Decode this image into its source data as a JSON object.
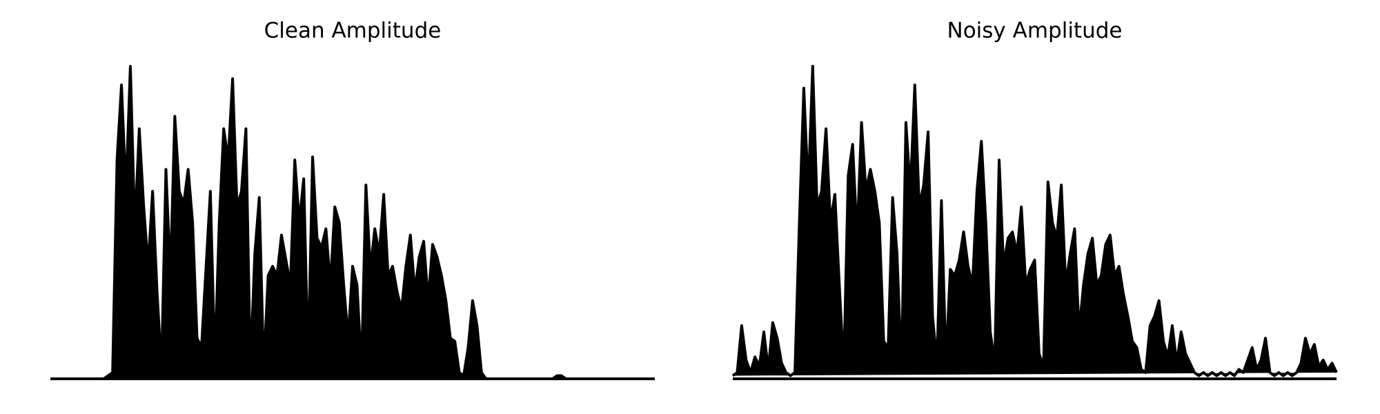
{
  "chart_data": [
    {
      "type": "area",
      "title": "Clean Amplitude",
      "color": "#000000",
      "ylim": [
        0,
        1
      ],
      "values": [
        0,
        0,
        0,
        0,
        0,
        0,
        0,
        0,
        0,
        0,
        0,
        0,
        0,
        0.01,
        0.02,
        0.7,
        0.94,
        0.6,
        1.0,
        0.48,
        0.8,
        0.55,
        0.36,
        0.6,
        0.28,
        0.03,
        0.67,
        0.33,
        0.84,
        0.6,
        0.56,
        0.67,
        0.5,
        0.13,
        0.1,
        0.35,
        0.6,
        0.05,
        0.5,
        0.8,
        0.7,
        0.96,
        0.55,
        0.6,
        0.8,
        0.03,
        0.4,
        0.58,
        0.03,
        0.33,
        0.36,
        0.33,
        0.46,
        0.38,
        0.3,
        0.7,
        0.5,
        0.64,
        0.05,
        0.71,
        0.45,
        0.42,
        0.48,
        0.3,
        0.55,
        0.5,
        0.3,
        0.13,
        0.36,
        0.3,
        0.03,
        0.62,
        0.35,
        0.48,
        0.4,
        0.59,
        0.33,
        0.36,
        0.28,
        0.22,
        0.36,
        0.46,
        0.28,
        0.39,
        0.44,
        0.25,
        0.43,
        0.39,
        0.33,
        0.25,
        0.13,
        0.12,
        0.02,
        0.01,
        0.1,
        0.25,
        0.17,
        0.02,
        0,
        0,
        0,
        0,
        0,
        0,
        0,
        0,
        0,
        0,
        0,
        0,
        0,
        0,
        0,
        0,
        0.01,
        0.01,
        0,
        0,
        0,
        0,
        0,
        0,
        0,
        0,
        0,
        0,
        0,
        0,
        0,
        0,
        0,
        0,
        0,
        0,
        0,
        0,
        0
      ]
    },
    {
      "type": "area",
      "title": "Noisy Amplitude",
      "color": "#000000",
      "ylim": [
        0,
        1
      ],
      "values": [
        0.01,
        0.02,
        0.17,
        0.06,
        0.02,
        0.07,
        0.04,
        0.15,
        0.03,
        0.18,
        0.13,
        0.05,
        0.02,
        0.01,
        0.02,
        0.5,
        0.93,
        0.6,
        1.0,
        0.55,
        0.6,
        0.8,
        0.5,
        0.59,
        0.3,
        0.03,
        0.65,
        0.75,
        0.45,
        0.82,
        0.6,
        0.67,
        0.6,
        0.5,
        0.12,
        0.1,
        0.58,
        0.4,
        0.02,
        0.82,
        0.6,
        0.94,
        0.55,
        0.62,
        0.79,
        0.2,
        0.05,
        0.57,
        0.05,
        0.35,
        0.33,
        0.38,
        0.47,
        0.36,
        0.3,
        0.6,
        0.76,
        0.5,
        0.15,
        0.05,
        0.7,
        0.36,
        0.45,
        0.47,
        0.4,
        0.55,
        0.3,
        0.35,
        0.38,
        0.08,
        0.04,
        0.63,
        0.5,
        0.45,
        0.62,
        0.3,
        0.4,
        0.48,
        0.15,
        0.3,
        0.4,
        0.45,
        0.3,
        0.33,
        0.43,
        0.46,
        0.33,
        0.36,
        0.27,
        0.2,
        0.12,
        0.1,
        0.03,
        0.02,
        0.17,
        0.2,
        0.25,
        0.12,
        0.07,
        0.17,
        0.05,
        0.15,
        0.08,
        0.05,
        0.02,
        0.01,
        0.02,
        0.01,
        0.02,
        0.01,
        0.02,
        0.01,
        0.02,
        0.01,
        0.03,
        0.02,
        0.06,
        0.1,
        0.03,
        0.06,
        0.13,
        0.02,
        0.01,
        0.02,
        0.01,
        0.02,
        0.01,
        0.02,
        0.05,
        0.13,
        0.08,
        0.11,
        0.04,
        0.06,
        0.03,
        0.05,
        0.02
      ]
    }
  ]
}
